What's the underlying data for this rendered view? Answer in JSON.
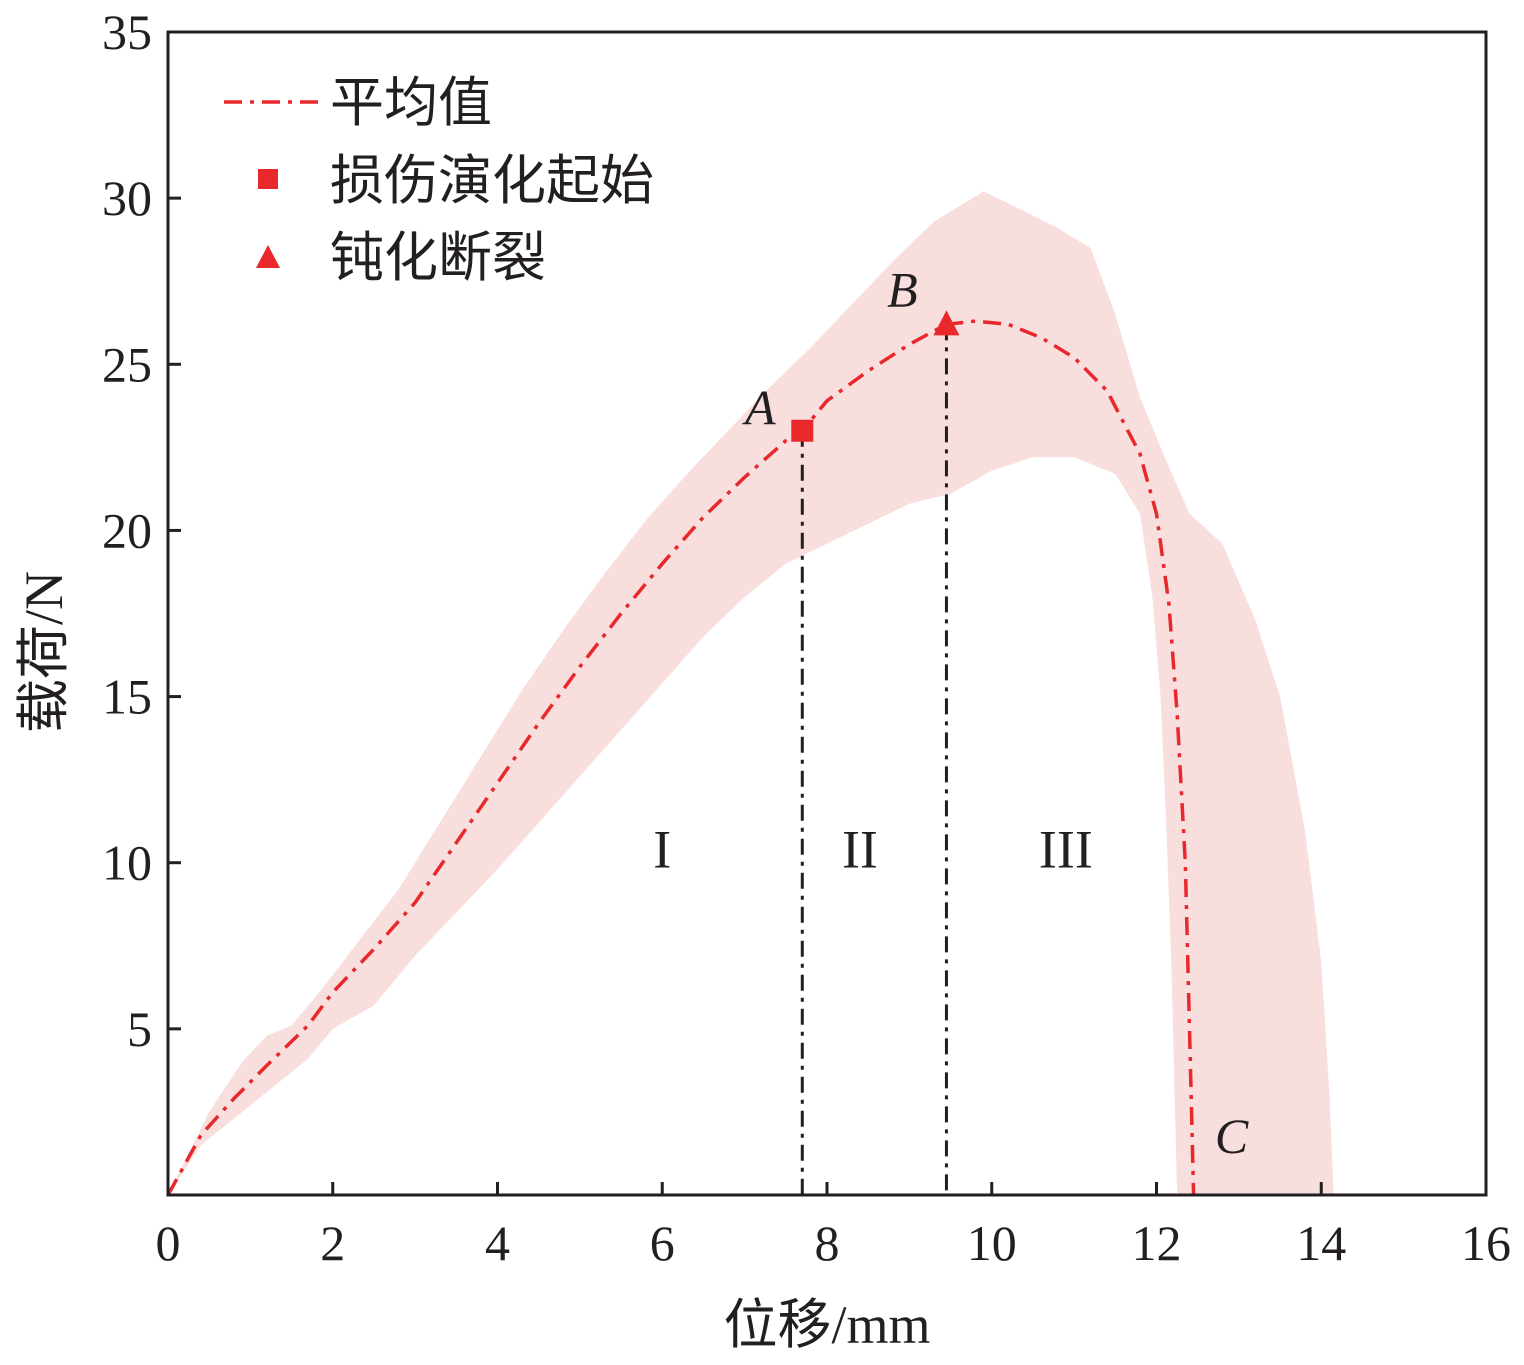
{
  "chart_data": {
    "type": "line",
    "xlabel": "位移/mm",
    "ylabel": "载荷/N",
    "xlim": [
      0,
      16
    ],
    "ylim": [
      0,
      35
    ],
    "xticks": [
      0,
      2,
      4,
      6,
      8,
      10,
      12,
      14,
      16
    ],
    "yticks": [
      5,
      10,
      15,
      20,
      25,
      30,
      35
    ],
    "grid": false,
    "legend_position": "top-left",
    "legend": [
      {
        "label": "平均值",
        "symbol": "dash-dot-line"
      },
      {
        "label": "损伤演化起始",
        "symbol": "square"
      },
      {
        "label": "钝化断裂",
        "symbol": "triangle"
      }
    ],
    "colors": {
      "mean": "#e8282b",
      "band": "#f9dede",
      "guide": "#231f20",
      "axis": "#231f20"
    },
    "series": [
      {
        "name": "平均值",
        "style": "dash-dot",
        "x": [
          0,
          0.4,
          0.8,
          1.2,
          1.7,
          2.0,
          2.5,
          3.0,
          3.5,
          4.0,
          4.5,
          5.0,
          5.5,
          6.0,
          6.5,
          7.0,
          7.5,
          7.7,
          8.0,
          8.5,
          9.0,
          9.45,
          9.8,
          10.2,
          10.6,
          11.0,
          11.4,
          11.8,
          12.0,
          12.15,
          12.25,
          12.35,
          12.4,
          12.45
        ],
        "y": [
          0,
          1.8,
          2.9,
          3.9,
          5.1,
          6.1,
          7.4,
          8.8,
          10.6,
          12.4,
          14.2,
          15.9,
          17.5,
          19.0,
          20.4,
          21.6,
          22.7,
          23.0,
          23.9,
          24.8,
          25.6,
          26.2,
          26.3,
          26.2,
          25.8,
          25.2,
          24.2,
          22.3,
          20.5,
          17.8,
          14.5,
          10.0,
          5.0,
          0
        ]
      }
    ],
    "band": {
      "upper": {
        "x": [
          0,
          0.5,
          0.9,
          1.2,
          1.5,
          1.9,
          2.3,
          2.8,
          3.3,
          3.8,
          4.3,
          4.8,
          5.3,
          5.8,
          6.3,
          6.8,
          7.3,
          7.8,
          8.3,
          8.8,
          9.3,
          9.9,
          10.4,
          10.8,
          11.2,
          11.5,
          11.8,
          12.1,
          12.4,
          12.8,
          13.2,
          13.5,
          13.8,
          14.0,
          14.1,
          14.15
        ],
        "y": [
          0,
          2.5,
          4.0,
          4.8,
          5.1,
          6.3,
          7.6,
          9.2,
          11.2,
          13.2,
          15.2,
          17.0,
          18.7,
          20.3,
          21.7,
          23.0,
          24.3,
          25.5,
          26.8,
          28.1,
          29.3,
          30.2,
          29.6,
          29.1,
          28.5,
          26.5,
          24.0,
          22.2,
          20.5,
          19.6,
          17.3,
          15.0,
          11.0,
          7.0,
          3.0,
          0
        ]
      },
      "lower": {
        "x": [
          0,
          0.4,
          0.8,
          1.2,
          1.7,
          2.0,
          2.5,
          3.0,
          3.5,
          4.0,
          4.5,
          5.0,
          5.5,
          6.0,
          6.5,
          7.0,
          7.5,
          8.0,
          8.5,
          9.0,
          9.5,
          10.0,
          10.5,
          11.0,
          11.5,
          11.8,
          11.95,
          12.05,
          12.12,
          12.18,
          12.22,
          12.25
        ],
        "y": [
          0,
          1.5,
          2.3,
          3.1,
          4.1,
          5.0,
          5.7,
          7.2,
          8.5,
          9.8,
          11.2,
          12.6,
          14.0,
          15.4,
          16.8,
          18.0,
          19.0,
          19.6,
          20.2,
          20.8,
          21.1,
          21.8,
          22.2,
          22.2,
          21.7,
          20.5,
          18.0,
          15.0,
          11.0,
          7.0,
          3.0,
          0
        ]
      }
    },
    "points": [
      {
        "label": "A",
        "x": 7.7,
        "y": 23.0,
        "marker": "square",
        "guide": true
      },
      {
        "label": "B",
        "x": 9.45,
        "y": 26.2,
        "marker": "triangle",
        "guide": true
      },
      {
        "label": "C",
        "x": 12.45,
        "y": 0,
        "marker": "none",
        "guide": false
      }
    ],
    "regions": [
      {
        "label": "I",
        "x": 6.0,
        "y": 10.4
      },
      {
        "label": "II",
        "x": 8.4,
        "y": 10.4
      },
      {
        "label": "III",
        "x": 10.9,
        "y": 10.4
      }
    ]
  }
}
